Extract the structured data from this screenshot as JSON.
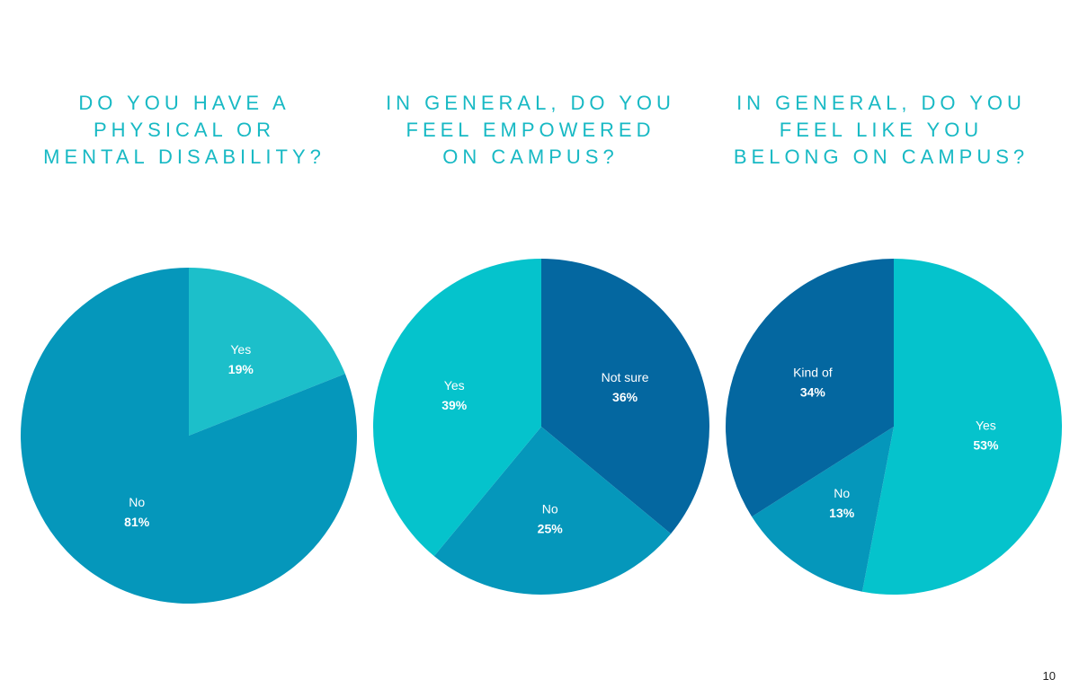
{
  "chart_data": [
    {
      "type": "pie",
      "title": "DO YOU HAVE A PHYSICAL OR MENTAL DISABILITY?",
      "slices": [
        {
          "label": "Yes",
          "value": 19,
          "display": "19%",
          "color": "#1cbfca"
        },
        {
          "label": "No",
          "value": 81,
          "display": "81%",
          "color": "#0597bb"
        }
      ]
    },
    {
      "type": "pie",
      "title": "IN GENERAL, DO YOU FEEL EMPOWERED ON CAMPUS?",
      "slices": [
        {
          "label": "Not sure",
          "value": 36,
          "display": "36%",
          "color": "#0467a0"
        },
        {
          "label": "No",
          "value": 25,
          "display": "25%",
          "color": "#0597bb"
        },
        {
          "label": "Yes",
          "value": 39,
          "display": "39%",
          "color": "#05c3cc"
        }
      ]
    },
    {
      "type": "pie",
      "title": "IN GENERAL, DO YOU FEEL LIKE YOU BELONG ON CAMPUS?",
      "slices": [
        {
          "label": "Yes",
          "value": 53,
          "display": "53%",
          "color": "#05c3cc"
        },
        {
          "label": "No",
          "value": 13,
          "display": "13%",
          "color": "#0597bb"
        },
        {
          "label": "Kind of",
          "value": 34,
          "display": "34%",
          "color": "#0467a0"
        }
      ]
    }
  ],
  "page_number": "10"
}
